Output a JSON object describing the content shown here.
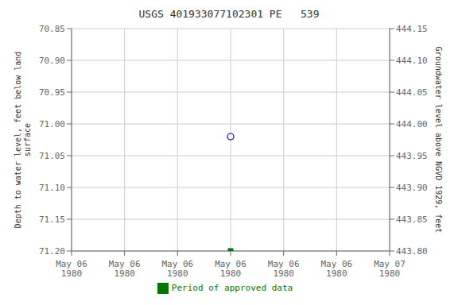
{
  "chart_data": {
    "type": "scatter",
    "title": "USGS 401933077102301 PE   539",
    "y_label": "Depth to water level, feet below land\nsurface",
    "y2_label": "Groundwater level above NGVD 1929, feet",
    "categories": [
      "May 06\n1980",
      "May 06\n1980",
      "May 06\n1980",
      "May 06\n1980",
      "May 06\n1980",
      "May 06\n1980",
      "May 07\n1980"
    ],
    "ylim": [
      71.2,
      70.85
    ],
    "yticks": [
      70.85,
      {
        "value": 70.9,
        "label": "70.90"
      },
      70.95,
      {
        "value": 71,
        "label": "71.00"
      },
      71.05,
      {
        "value": 71.1,
        "label": "71.10"
      },
      71.15,
      {
        "value": 71.2,
        "label": "71.20"
      }
    ],
    "y2lim": [
      443.8,
      444.15
    ],
    "y2ticks": [
      444.15,
      {
        "value": 444.1,
        "label": "444.10"
      },
      444.05,
      {
        "value": 444,
        "label": "444.00"
      },
      443.95,
      {
        "value": 443.9,
        "label": "443.90"
      },
      443.85,
      {
        "value": 443.8,
        "label": "443.80"
      }
    ],
    "series": [
      {
        "color": "#0000cc",
        "marker": "open_circle",
        "values": [
          null,
          null,
          null,
          71.02,
          null,
          null,
          null
        ]
      },
      {
        "name": "Period of approved data",
        "color": "#007700",
        "marker": "square",
        "values": [
          null,
          null,
          null,
          71.2,
          null,
          null,
          null
        ]
      }
    ],
    "grid": true,
    "legend": "bottom"
  }
}
